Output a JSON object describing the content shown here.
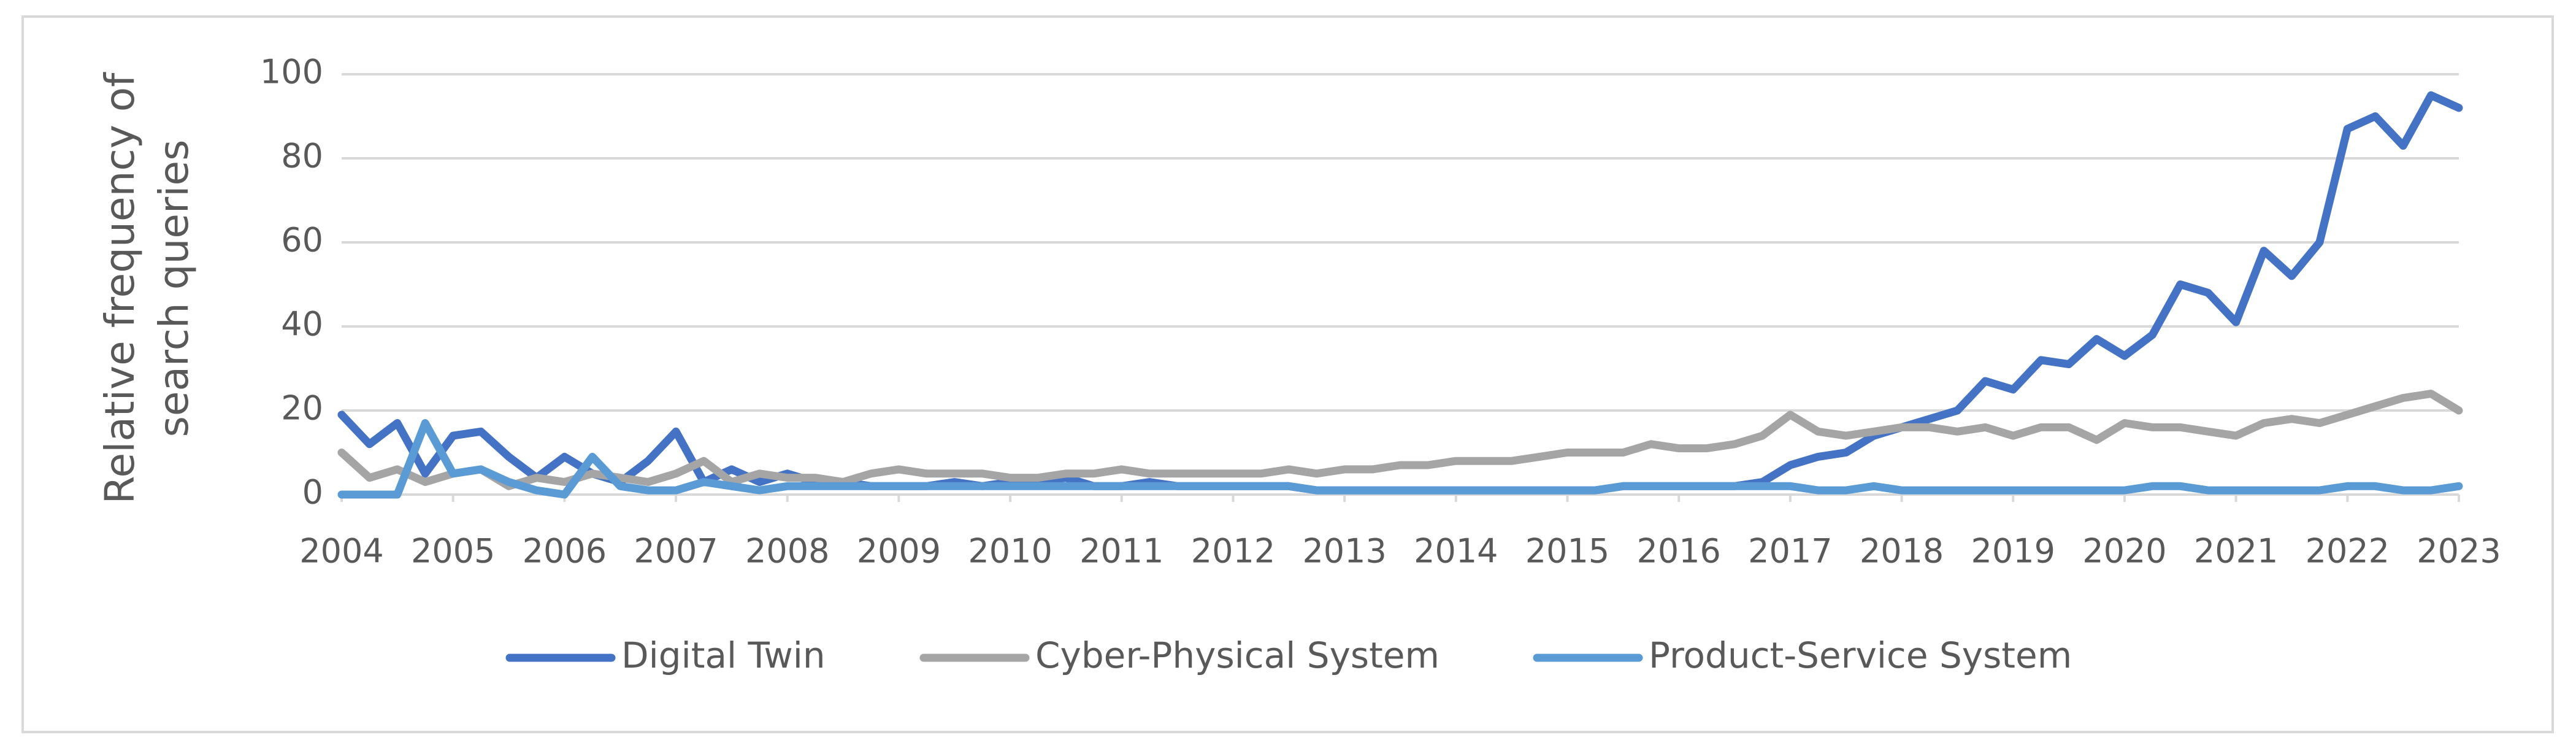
{
  "chart_data": {
    "type": "line",
    "y_label": [
      "Relative frequency of",
      "search queries"
    ],
    "x": [
      2004,
      2004.25,
      2004.5,
      2004.75,
      2005,
      2005.25,
      2005.5,
      2005.75,
      2006,
      2006.25,
      2006.5,
      2006.75,
      2007,
      2007.25,
      2007.5,
      2007.75,
      2008,
      2008.25,
      2008.5,
      2008.75,
      2009,
      2009.25,
      2009.5,
      2009.75,
      2010,
      2010.25,
      2010.5,
      2010.75,
      2011,
      2011.25,
      2011.5,
      2011.75,
      2012,
      2012.25,
      2012.5,
      2012.75,
      2013,
      2013.25,
      2013.5,
      2013.75,
      2014,
      2014.25,
      2014.5,
      2014.75,
      2015,
      2015.25,
      2015.5,
      2015.75,
      2016,
      2016.25,
      2016.5,
      2016.75,
      2017,
      2017.25,
      2017.5,
      2017.75,
      2018,
      2018.25,
      2018.5,
      2018.75,
      2019,
      2019.25,
      2019.5,
      2019.75,
      2020,
      2020.25,
      2020.5,
      2020.75,
      2021,
      2021.25,
      2021.5,
      2021.75,
      2022,
      2022.25,
      2022.5,
      2022.75,
      2023
    ],
    "series": [
      {
        "name": "Digital Twin",
        "color": "#4472c4",
        "values": [
          19,
          12,
          17,
          5,
          14,
          15,
          9,
          4,
          9,
          5,
          3,
          8,
          15,
          3,
          6,
          3,
          5,
          3,
          3,
          2,
          2,
          2,
          3,
          2,
          3,
          3,
          4,
          2,
          2,
          3,
          2,
          2,
          2,
          2,
          2,
          1,
          1,
          1,
          1,
          1,
          1,
          1,
          1,
          1,
          1,
          1,
          2,
          2,
          2,
          2,
          2,
          3,
          7,
          9,
          10,
          14,
          16,
          18,
          20,
          27,
          25,
          32,
          31,
          37,
          33,
          38,
          50,
          48,
          41,
          58,
          52,
          60,
          87,
          90,
          83,
          95,
          92
        ]
      },
      {
        "name": "Cyber-Physical System",
        "color": "#a5a5a5",
        "values": [
          10,
          4,
          6,
          3,
          5,
          6,
          2,
          4,
          3,
          5,
          4,
          3,
          5,
          8,
          3,
          5,
          4,
          4,
          3,
          5,
          6,
          5,
          5,
          5,
          4,
          4,
          5,
          5,
          6,
          5,
          5,
          5,
          5,
          5,
          6,
          5,
          6,
          6,
          7,
          7,
          8,
          8,
          8,
          9,
          10,
          10,
          10,
          12,
          11,
          11,
          12,
          14,
          19,
          15,
          14,
          15,
          16,
          16,
          15,
          16,
          14,
          16,
          16,
          13,
          17,
          16,
          16,
          15,
          14,
          17,
          18,
          17,
          19,
          21,
          23,
          24,
          20
        ]
      },
      {
        "name": "Product-Service System",
        "color": "#5b9bd5",
        "values": [
          0,
          0,
          0,
          17,
          5,
          6,
          3,
          1,
          0,
          9,
          2,
          1,
          1,
          3,
          2,
          1,
          2,
          2,
          2,
          2,
          2,
          2,
          2,
          2,
          2,
          2,
          2,
          2,
          2,
          2,
          2,
          2,
          2,
          2,
          2,
          1,
          1,
          1,
          1,
          1,
          1,
          1,
          1,
          1,
          1,
          1,
          2,
          2,
          2,
          2,
          2,
          2,
          2,
          1,
          1,
          2,
          1,
          1,
          1,
          1,
          1,
          1,
          1,
          1,
          1,
          2,
          2,
          1,
          1,
          1,
          1,
          1,
          2,
          2,
          1,
          1,
          2
        ]
      }
    ],
    "xlim": [
      2004,
      2023
    ],
    "xticks": [
      2004,
      2005,
      2006,
      2007,
      2008,
      2009,
      2010,
      2011,
      2012,
      2013,
      2014,
      2015,
      2016,
      2017,
      2018,
      2019,
      2020,
      2021,
      2022,
      2023
    ],
    "ylim": [
      0,
      100
    ],
    "yticks": [
      0,
      20,
      40,
      60,
      80,
      100
    ],
    "grid": true,
    "legend": "bottom"
  }
}
